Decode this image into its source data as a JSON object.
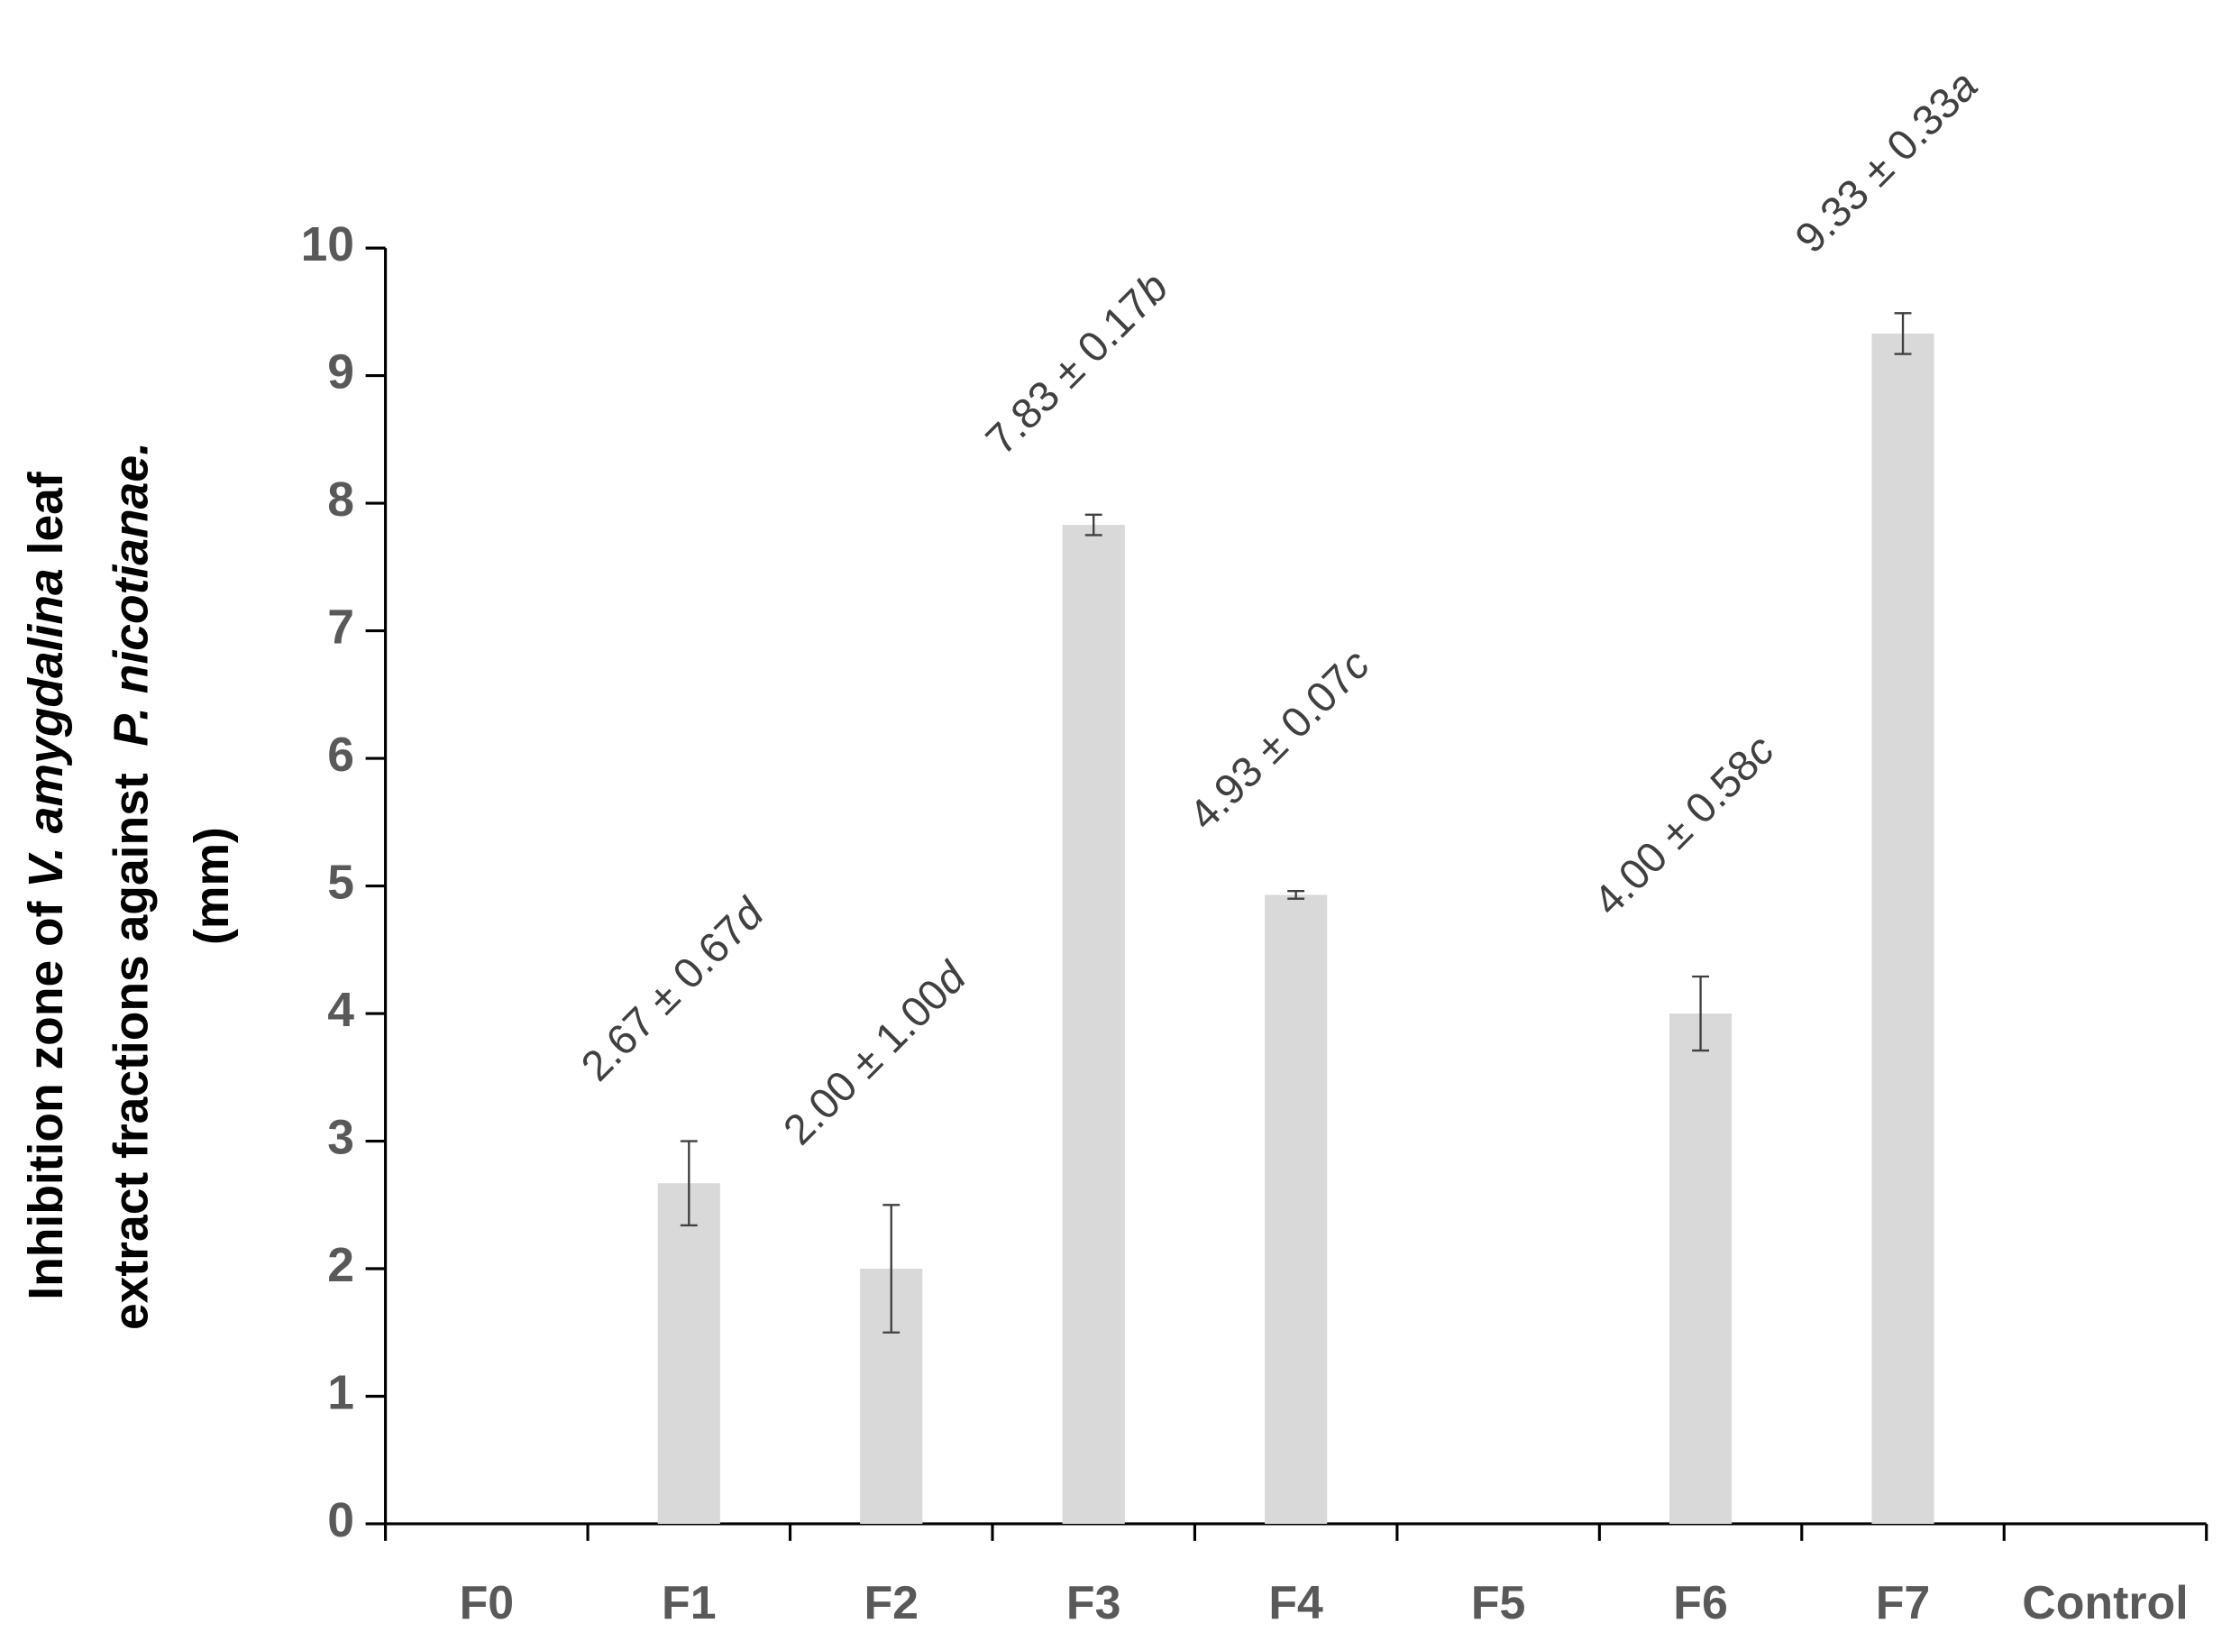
{
  "chart_data": {
    "type": "bar",
    "ylabel": [
      [
        {
          "text": "Inhibition zone of "
        },
        {
          "text": "V. amygdalina",
          "italic": true
        },
        {
          "text": " leaf"
        }
      ],
      [
        {
          "text": "extract fractions against  "
        },
        {
          "text": "P. nicotianae.",
          "italic": true
        }
      ],
      [
        {
          "text": "(mm)"
        }
      ]
    ],
    "categories": [
      "F0",
      "F1",
      "F2",
      "F3",
      "F4",
      "F5",
      "F6",
      "F7",
      "Control"
    ],
    "values": [
      0,
      2.67,
      2.0,
      7.83,
      4.93,
      0,
      4.0,
      9.33,
      0
    ],
    "errors": [
      null,
      0.33,
      0.5,
      0.08,
      0.03,
      null,
      0.29,
      0.16,
      null
    ],
    "value_labels": [
      null,
      "2.67 ± 0.67",
      "2.00 ± 1.00",
      "7.83 ± 0.17",
      "4.93 ± 0.07",
      null,
      "4.00 ± 0.58",
      "9.33 ± 0.33",
      null
    ],
    "significance": [
      null,
      "d",
      "d",
      "b",
      "c",
      null,
      "c",
      "a",
      null
    ],
    "color": "#d9d9d9",
    "ylim": [
      0,
      10
    ],
    "yticks": [
      0,
      1,
      2,
      3,
      4,
      5,
      6,
      7,
      8,
      9,
      10
    ]
  }
}
